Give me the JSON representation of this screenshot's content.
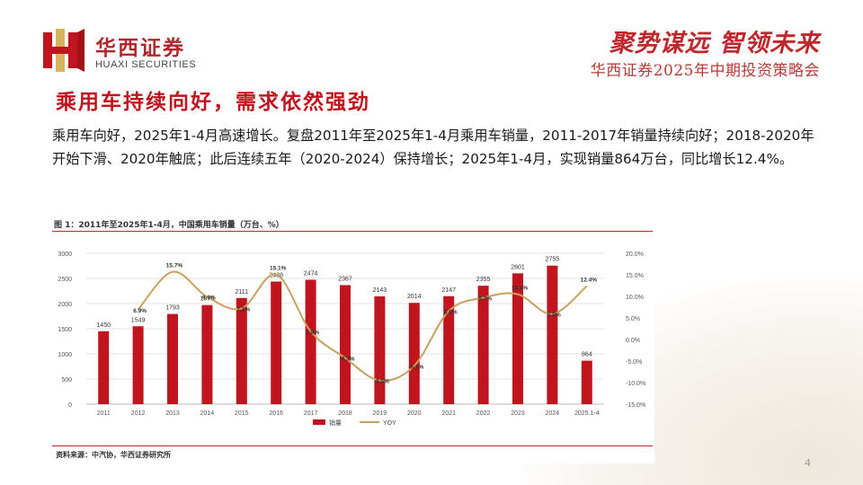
{
  "header": {
    "brand_cn": "华西证券",
    "brand_en": "HUAXI SECURITIES",
    "slogan": "聚势谋远 智领未来",
    "event": "华西证券2025年中期投资策略会"
  },
  "slide": {
    "title": "乘用车持续向好，需求依然强劲",
    "paragraph": "乘用车向好，2025年1-4月高速增长。复盘2011年至2025年1-4月乘用车销量，2011-2017年销量持续向好；2018-2020年开始下滑、2020年触底；此后连续五年（2020-2024）保持增长；2025年1-4月，实现销量864万台，同比增长12.4%。",
    "page_number": "4"
  },
  "figure": {
    "caption": "图 1：2011年至2025年1-4月，中国乘用车销量（万台、%）",
    "source": "资料来源：中汽协，华西证券研究所"
  },
  "chart_data": {
    "type": "bar",
    "categories": [
      "2011",
      "2012",
      "2013",
      "2014",
      "2015",
      "2016",
      "2017",
      "2018",
      "2019",
      "2020",
      "2021",
      "2022",
      "2023",
      "2024",
      "2025.1-4"
    ],
    "series": [
      {
        "name": "销量",
        "type": "bar",
        "axis": "left",
        "color": "#c0151e",
        "values": [
          1450,
          1549,
          1793,
          1970,
          2111,
          2438,
          2474,
          2367,
          2143,
          2014,
          2147,
          2355,
          2601,
          2755,
          864
        ],
        "labels": [
          "1450",
          "1549",
          "1793",
          "1970",
          "2111",
          "2438",
          "2474",
          "2367",
          "2143",
          "2014",
          "2147",
          "2355",
          "2601",
          "2755",
          "864"
        ]
      },
      {
        "name": "YOY",
        "type": "line",
        "axis": "right",
        "color": "#c9a15f",
        "values": [
          null,
          6.9,
          15.7,
          9.9,
          7.2,
          15.1,
          1.9,
          -4.3,
          -9.5,
          -6.1,
          6.6,
          9.7,
          10.5,
          5.9,
          12.4
        ],
        "labels": [
          null,
          "6.9%",
          "15.7%",
          "9.9%",
          "7.2%",
          "15.1%",
          "1.9%",
          "-4.3%",
          "-9.5%",
          "-6.1%",
          "6.6%",
          "9.7%",
          "10.5%",
          "5.9%",
          "12.4%"
        ]
      }
    ],
    "y_left": {
      "min": 0,
      "max": 3000,
      "ticks": [
        0,
        500,
        1000,
        1500,
        2000,
        2500,
        3000
      ],
      "tick_labels": [
        "0",
        "500",
        "1000",
        "1500",
        "2000",
        "2500",
        "3000"
      ]
    },
    "y_right": {
      "min": -15,
      "max": 20,
      "ticks": [
        20,
        15,
        10,
        5,
        0,
        -5,
        -10,
        -15
      ],
      "tick_labels": [
        "20.0%",
        "15.0%",
        "10.0%",
        "5.0%",
        "0.0%",
        "-5.0%",
        "-10.0%",
        "-15.0%"
      ]
    },
    "grid": true,
    "legend_position": "bottom",
    "legend": [
      "销量",
      "YOY"
    ]
  },
  "colors": {
    "brand_red": "#c0151e",
    "line_gold": "#c9a15f",
    "logo_gold": "#d9b25c"
  }
}
